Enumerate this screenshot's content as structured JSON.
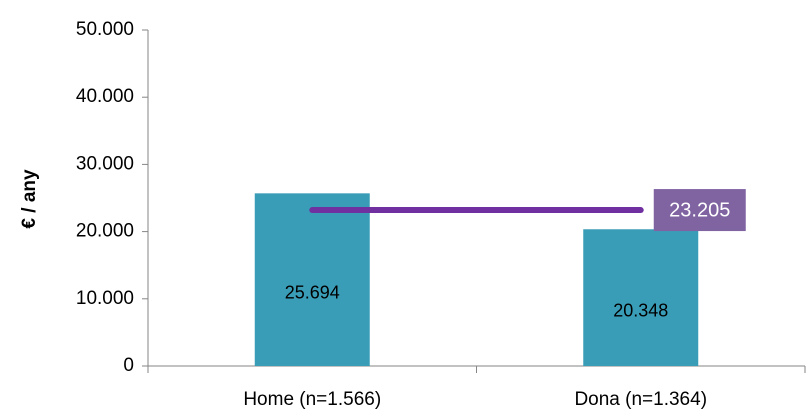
{
  "chart_data": {
    "type": "bar",
    "title": "",
    "xlabel": "",
    "ylabel": "€ / any",
    "ylim": [
      0,
      50000
    ],
    "yticks": [
      0,
      10000,
      20000,
      30000,
      40000,
      50000
    ],
    "ytick_labels": [
      "0",
      "10.000",
      "20.000",
      "30.000",
      "40.000",
      "50.000"
    ],
    "categories": [
      "Home (n=1.566)",
      "Dona (n=1.364)"
    ],
    "values": [
      25694,
      20348
    ],
    "value_labels": [
      "25.694",
      "20.348"
    ],
    "bar_color": "#3a9db7",
    "grid": false,
    "reference_line": {
      "value": 23205,
      "label": "23.205",
      "color": "#7030a0",
      "label_bg": "#8064a2"
    }
  }
}
